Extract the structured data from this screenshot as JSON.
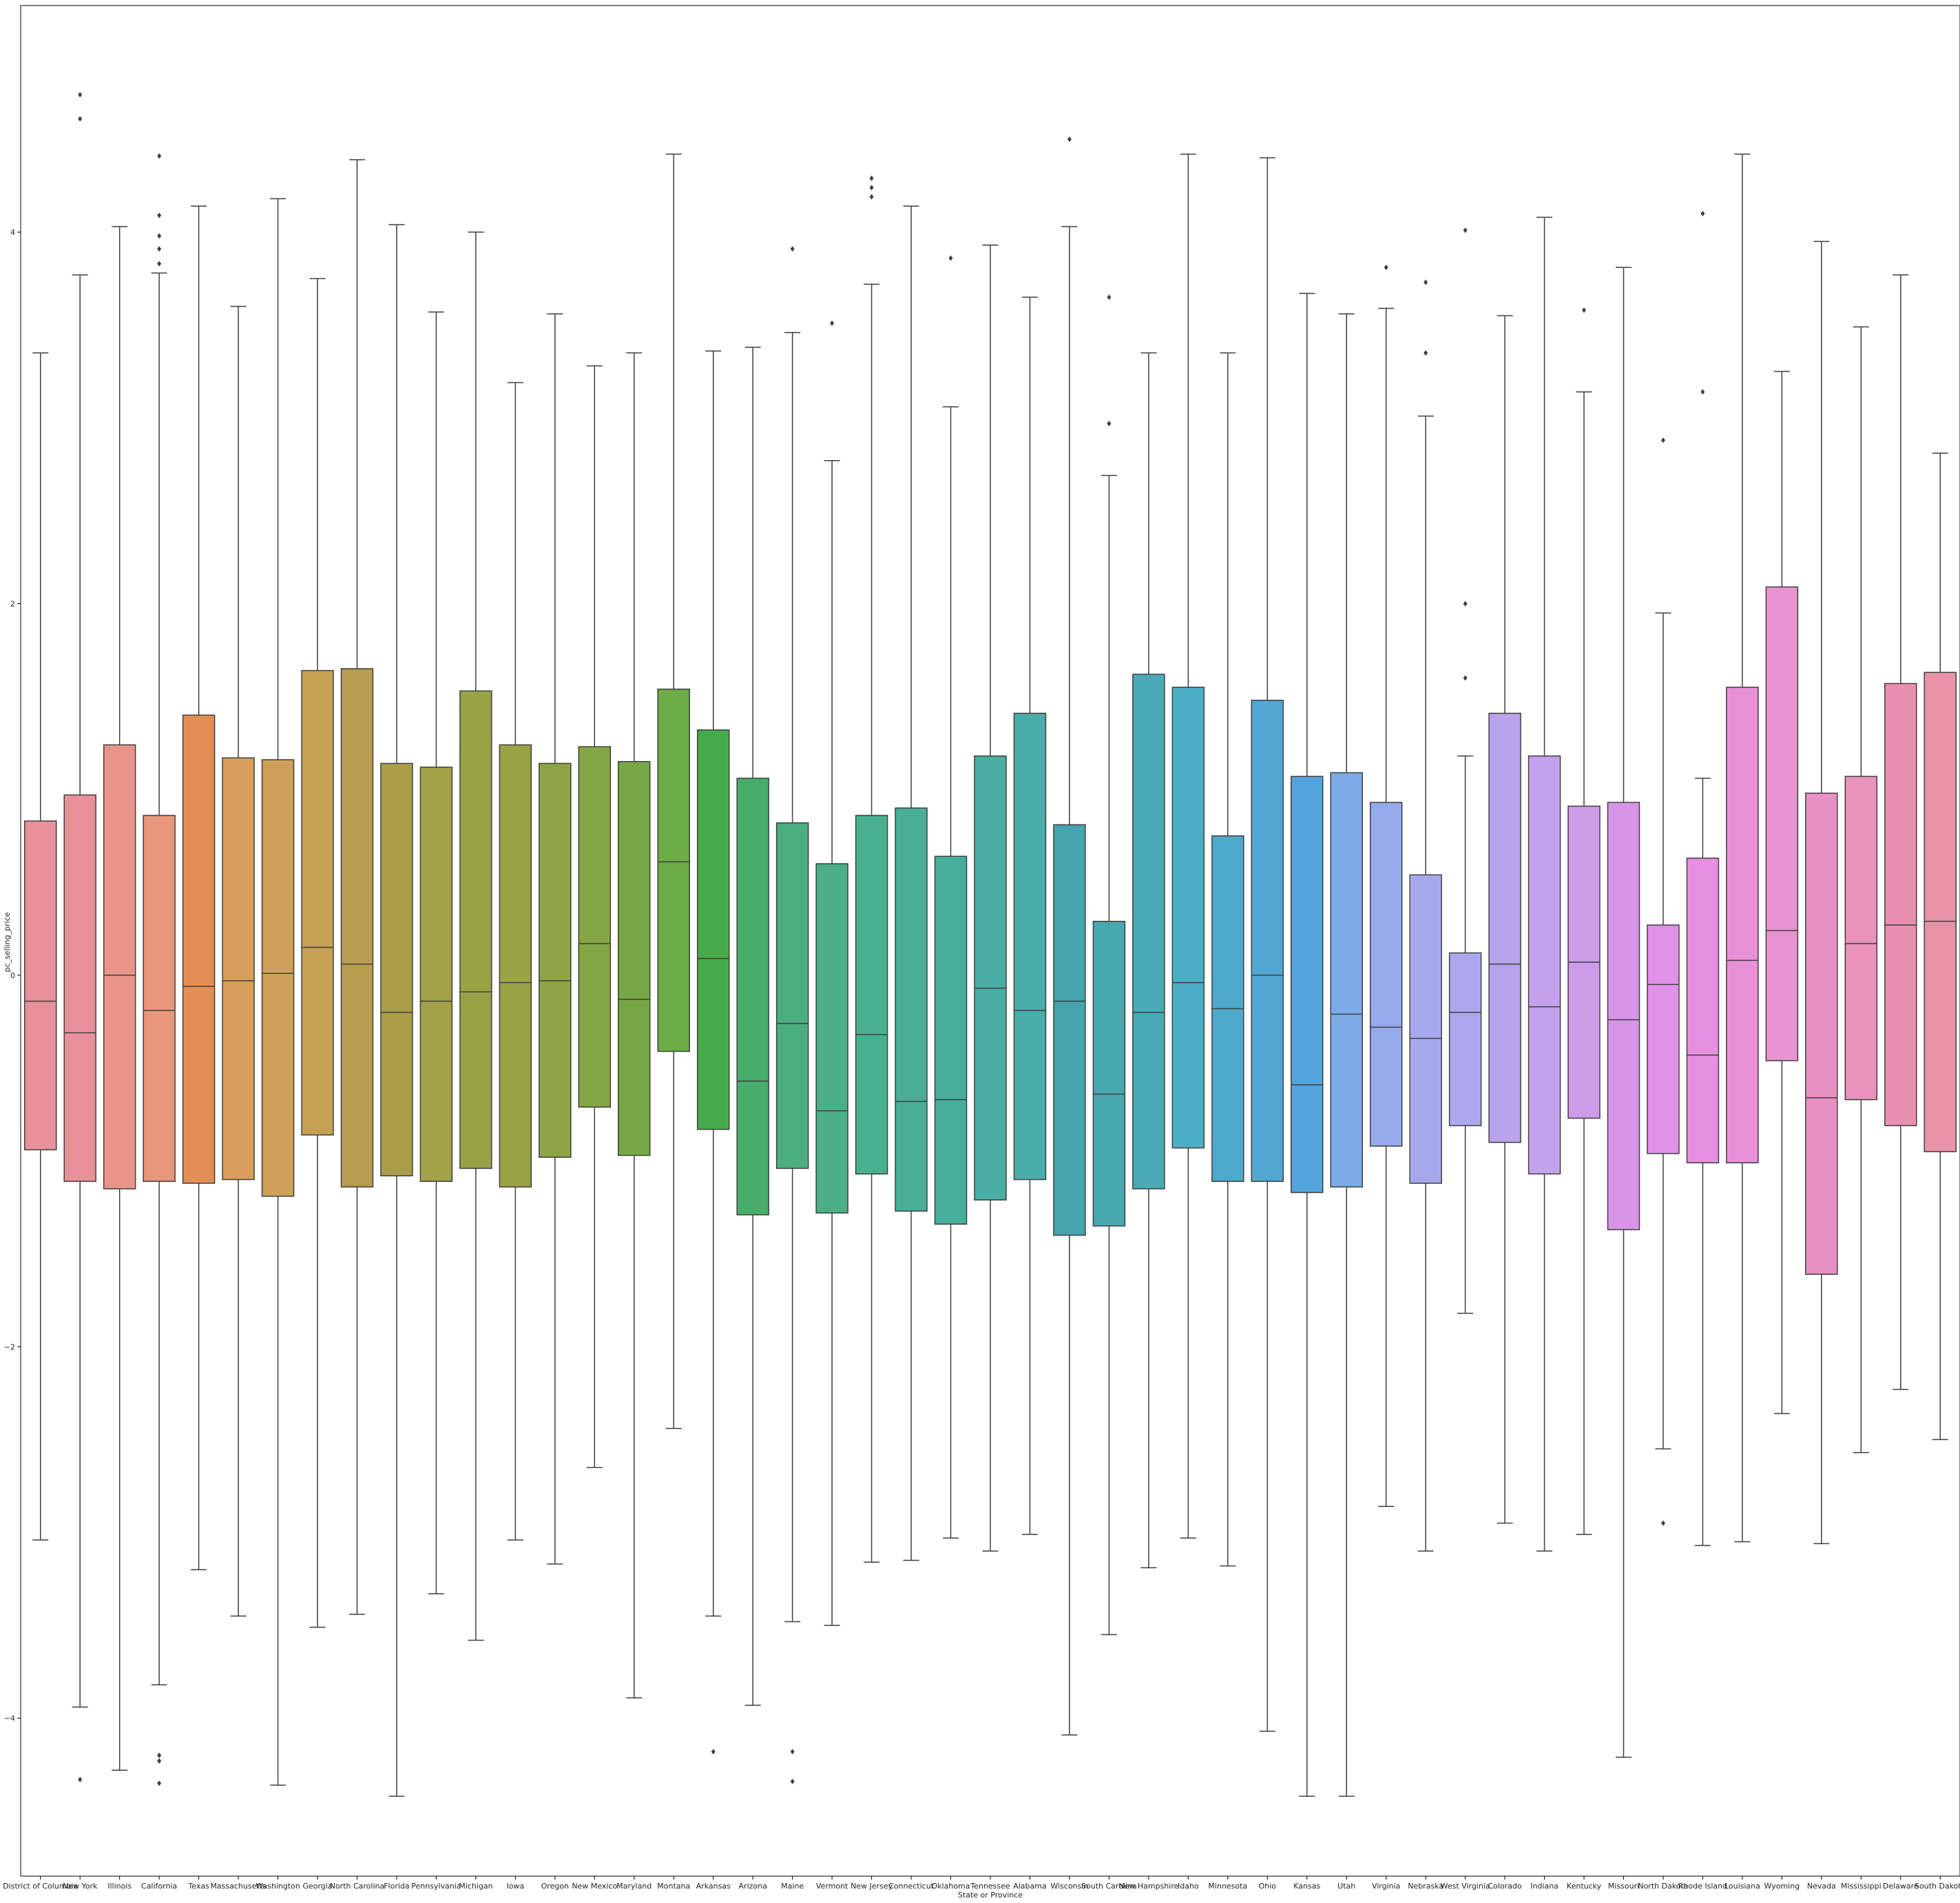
{
  "chart_data": {
    "type": "box",
    "xlabel": "State or Province",
    "ylabel": "pc_selling_price",
    "ylim": [
      -4.85,
      5.22
    ],
    "yticks": [
      -4,
      -2,
      0,
      2,
      4
    ],
    "grid": false,
    "categories": [
      {
        "name": "District of Columbia",
        "whislo": -3.04,
        "q1": -0.94,
        "med": -0.14,
        "q3": 0.83,
        "whishi": 3.35,
        "fliers": [],
        "color": "#e8919b"
      },
      {
        "name": "New York",
        "whislo": -3.94,
        "q1": -1.11,
        "med": -0.31,
        "q3": 0.97,
        "whishi": 3.77,
        "fliers": [
          4.74,
          4.61,
          -4.33
        ],
        "color": "#e8919b"
      },
      {
        "name": "Illinois",
        "whislo": -4.28,
        "q1": -1.15,
        "med": 0.0,
        "q3": 1.24,
        "whishi": 4.03,
        "fliers": [],
        "color": "#e8948b"
      },
      {
        "name": "California",
        "whislo": -3.82,
        "q1": -1.11,
        "med": -0.19,
        "q3": 0.86,
        "whishi": 3.78,
        "fliers": [
          4.41,
          4.09,
          3.98,
          3.91,
          3.83,
          -4.2,
          -4.23,
          -4.35
        ],
        "color": "#e8967c"
      },
      {
        "name": "Texas",
        "whislo": -3.2,
        "q1": -1.12,
        "med": -0.06,
        "q3": 1.4,
        "whishi": 4.14,
        "fliers": [],
        "color": "#e28f56"
      },
      {
        "name": "Massachusetts",
        "whislo": -3.45,
        "q1": -1.1,
        "med": -0.03,
        "q3": 1.17,
        "whishi": 3.6,
        "fliers": [],
        "color": "#d89e5a"
      },
      {
        "name": "Washington",
        "whislo": -4.36,
        "q1": -1.19,
        "med": 0.01,
        "q3": 1.16,
        "whishi": 4.18,
        "fliers": [],
        "color": "#d0a058"
      },
      {
        "name": "Georgia",
        "whislo": -3.51,
        "q1": -0.86,
        "med": 0.15,
        "q3": 1.64,
        "whishi": 3.75,
        "fliers": [],
        "color": "#c5a052"
      },
      {
        "name": "North Carolina",
        "whislo": -3.44,
        "q1": -1.14,
        "med": 0.06,
        "q3": 1.65,
        "whishi": 4.39,
        "fliers": [],
        "color": "#b99c4d"
      },
      {
        "name": "Florida",
        "whislo": -4.42,
        "q1": -1.08,
        "med": -0.2,
        "q3": 1.14,
        "whishi": 4.04,
        "fliers": [],
        "color": "#aa9e48"
      },
      {
        "name": "Pennsylvania",
        "whislo": -3.33,
        "q1": -1.11,
        "med": -0.14,
        "q3": 1.12,
        "whishi": 3.57,
        "fliers": [],
        "color": "#a3a249"
      },
      {
        "name": "Michigan",
        "whislo": -3.58,
        "q1": -1.04,
        "med": -0.09,
        "q3": 1.53,
        "whishi": 4.0,
        "fliers": [],
        "color": "#9aa246"
      },
      {
        "name": "Iowa",
        "whislo": -3.04,
        "q1": -1.14,
        "med": -0.04,
        "q3": 1.24,
        "whishi": 3.19,
        "fliers": [],
        "color": "#9aa246"
      },
      {
        "name": "Oregon",
        "whislo": -3.17,
        "q1": -0.98,
        "med": -0.03,
        "q3": 1.14,
        "whishi": 3.56,
        "fliers": [],
        "color": "#8fa445"
      },
      {
        "name": "New Mexico",
        "whislo": -2.65,
        "q1": -0.71,
        "med": 0.17,
        "q3": 1.23,
        "whishi": 3.28,
        "fliers": [],
        "color": "#84a645"
      },
      {
        "name": "Maryland",
        "whislo": -3.89,
        "q1": -0.97,
        "med": -0.13,
        "q3": 1.15,
        "whishi": 3.35,
        "fliers": [],
        "color": "#77a745"
      },
      {
        "name": "Montana",
        "whislo": -2.44,
        "q1": -0.41,
        "med": 0.61,
        "q3": 1.54,
        "whishi": 4.42,
        "fliers": [],
        "color": "#6cad47"
      },
      {
        "name": "Arkansas",
        "whislo": -3.45,
        "q1": -0.83,
        "med": 0.09,
        "q3": 1.32,
        "whishi": 3.36,
        "fliers": [
          -4.18
        ],
        "color": "#45ab48"
      },
      {
        "name": "Arizona",
        "whislo": -3.93,
        "q1": -1.29,
        "med": -0.57,
        "q3": 1.06,
        "whishi": 3.38,
        "fliers": [],
        "color": "#47ad6a"
      },
      {
        "name": "Maine",
        "whislo": -3.48,
        "q1": -1.04,
        "med": -0.26,
        "q3": 0.82,
        "whishi": 3.46,
        "fliers": [
          3.91,
          -4.18,
          -4.34
        ],
        "color": "#4aae7e"
      },
      {
        "name": "Vermont",
        "whislo": -3.5,
        "q1": -1.28,
        "med": -0.73,
        "q3": 0.6,
        "whishi": 2.77,
        "fliers": [
          3.51
        ],
        "color": "#4aaf86"
      },
      {
        "name": "New Jersey",
        "whislo": -3.16,
        "q1": -1.07,
        "med": -0.32,
        "q3": 0.86,
        "whishi": 3.72,
        "fliers": [
          4.29,
          4.24,
          4.19
        ],
        "color": "#49b08f"
      },
      {
        "name": "Connecticut",
        "whislo": -3.15,
        "q1": -1.27,
        "med": -0.68,
        "q3": 0.9,
        "whishi": 4.14,
        "fliers": [],
        "color": "#48ae96"
      },
      {
        "name": "Oklahoma",
        "whislo": -3.03,
        "q1": -1.34,
        "med": -0.67,
        "q3": 0.64,
        "whishi": 3.06,
        "fliers": [
          3.86
        ],
        "color": "#48ae9c"
      },
      {
        "name": "Tennessee",
        "whislo": -3.1,
        "q1": -1.21,
        "med": -0.07,
        "q3": 1.18,
        "whishi": 3.93,
        "fliers": [],
        "color": "#49aea4"
      },
      {
        "name": "Alabama",
        "whislo": -3.01,
        "q1": -1.1,
        "med": -0.19,
        "q3": 1.41,
        "whishi": 3.65,
        "fliers": [],
        "color": "#4aadaa"
      },
      {
        "name": "Wisconsin",
        "whislo": -4.09,
        "q1": -1.4,
        "med": -0.14,
        "q3": 0.81,
        "whishi": 4.03,
        "fliers": [
          4.5
        ],
        "color": "#45a4ad"
      },
      {
        "name": "South Carolina",
        "whislo": -3.55,
        "q1": -1.35,
        "med": -0.64,
        "q3": 0.29,
        "whishi": 2.69,
        "fliers": [
          3.65,
          2.97
        ],
        "color": "#48a8b0"
      },
      {
        "name": "New Hampshire",
        "whislo": -3.19,
        "q1": -1.15,
        "med": -0.2,
        "q3": 1.62,
        "whishi": 3.35,
        "fliers": [],
        "color": "#4aabb6"
      },
      {
        "name": "Idaho",
        "whislo": -3.03,
        "q1": -0.93,
        "med": -0.04,
        "q3": 1.55,
        "whishi": 4.42,
        "fliers": [],
        "color": "#4caec4"
      },
      {
        "name": "Minnesota",
        "whislo": -3.18,
        "q1": -1.11,
        "med": -0.18,
        "q3": 0.75,
        "whishi": 3.35,
        "fliers": [],
        "color": "#4daacc"
      },
      {
        "name": "Ohio",
        "whislo": -4.07,
        "q1": -1.11,
        "med": 0.0,
        "q3": 1.48,
        "whishi": 4.4,
        "fliers": [],
        "color": "#52a8d2"
      },
      {
        "name": "Kansas",
        "whislo": -4.42,
        "q1": -1.17,
        "med": -0.59,
        "q3": 1.07,
        "whishi": 3.67,
        "fliers": [],
        "color": "#53a3dc"
      },
      {
        "name": "Utah",
        "whislo": -4.42,
        "q1": -1.14,
        "med": -0.21,
        "q3": 1.09,
        "whishi": 3.56,
        "fliers": [],
        "color": "#7cace6"
      },
      {
        "name": "Virginia",
        "whislo": -2.86,
        "q1": -0.92,
        "med": -0.28,
        "q3": 0.93,
        "whishi": 3.59,
        "fliers": [
          3.81
        ],
        "color": "#95aaea"
      },
      {
        "name": "Nebraska",
        "whislo": -3.1,
        "q1": -1.12,
        "med": -0.34,
        "q3": 0.54,
        "whishi": 3.01,
        "fliers": [
          3.73,
          3.35
        ],
        "color": "#a5a9ec"
      },
      {
        "name": "West Virginia",
        "whislo": -1.82,
        "q1": -0.81,
        "med": -0.2,
        "q3": 0.12,
        "whishi": 1.18,
        "fliers": [
          4.01,
          2.0,
          1.6
        ],
        "color": "#ada8ee"
      },
      {
        "name": "Colorado",
        "whislo": -2.95,
        "q1": -0.9,
        "med": 0.06,
        "q3": 1.41,
        "whishi": 3.55,
        "fliers": [],
        "color": "#b7a4ec"
      },
      {
        "name": "Indiana",
        "whislo": -3.1,
        "q1": -1.07,
        "med": -0.17,
        "q3": 1.18,
        "whishi": 4.08,
        "fliers": [],
        "color": "#c2a2ec"
      },
      {
        "name": "Kentucky",
        "whislo": -3.01,
        "q1": -0.77,
        "med": 0.07,
        "q3": 0.91,
        "whishi": 3.14,
        "fliers": [
          3.58
        ],
        "color": "#cc9ce8"
      },
      {
        "name": "Missouri",
        "whislo": -4.21,
        "q1": -1.37,
        "med": -0.24,
        "q3": 0.93,
        "whishi": 3.81,
        "fliers": [],
        "color": "#d895e8"
      },
      {
        "name": "North Dakota",
        "whislo": -2.55,
        "q1": -0.96,
        "med": -0.05,
        "q3": 0.27,
        "whishi": 1.95,
        "fliers": [
          2.88,
          -2.95
        ],
        "color": "#e092e8"
      },
      {
        "name": "Rhode Island",
        "whislo": -3.07,
        "q1": -1.01,
        "med": -0.43,
        "q3": 0.63,
        "whishi": 1.06,
        "fliers": [
          4.1,
          3.14
        ],
        "color": "#e690e0"
      },
      {
        "name": "Louisiana",
        "whislo": -3.05,
        "q1": -1.01,
        "med": 0.08,
        "q3": 1.55,
        "whishi": 4.42,
        "fliers": [],
        "color": "#e891d8"
      },
      {
        "name": "Wyoming",
        "whislo": -2.36,
        "q1": -0.46,
        "med": 0.24,
        "q3": 2.09,
        "whishi": 3.25,
        "fliers": [],
        "color": "#e794d0"
      },
      {
        "name": "Nevada",
        "whislo": -3.06,
        "q1": -1.61,
        "med": -0.66,
        "q3": 0.98,
        "whishi": 3.95,
        "fliers": [],
        "color": "#e790c4"
      },
      {
        "name": "Mississippi",
        "whislo": -2.57,
        "q1": -0.67,
        "med": 0.17,
        "q3": 1.07,
        "whishi": 3.49,
        "fliers": [],
        "color": "#e892bc"
      },
      {
        "name": "Delaware",
        "whislo": -2.23,
        "q1": -0.81,
        "med": 0.27,
        "q3": 1.57,
        "whishi": 3.77,
        "fliers": [],
        "color": "#e88fb0"
      },
      {
        "name": "South Dakota",
        "whislo": -2.5,
        "q1": -0.95,
        "med": 0.29,
        "q3": 1.63,
        "whishi": 2.81,
        "fliers": [],
        "color": "#e894a8"
      }
    ]
  }
}
